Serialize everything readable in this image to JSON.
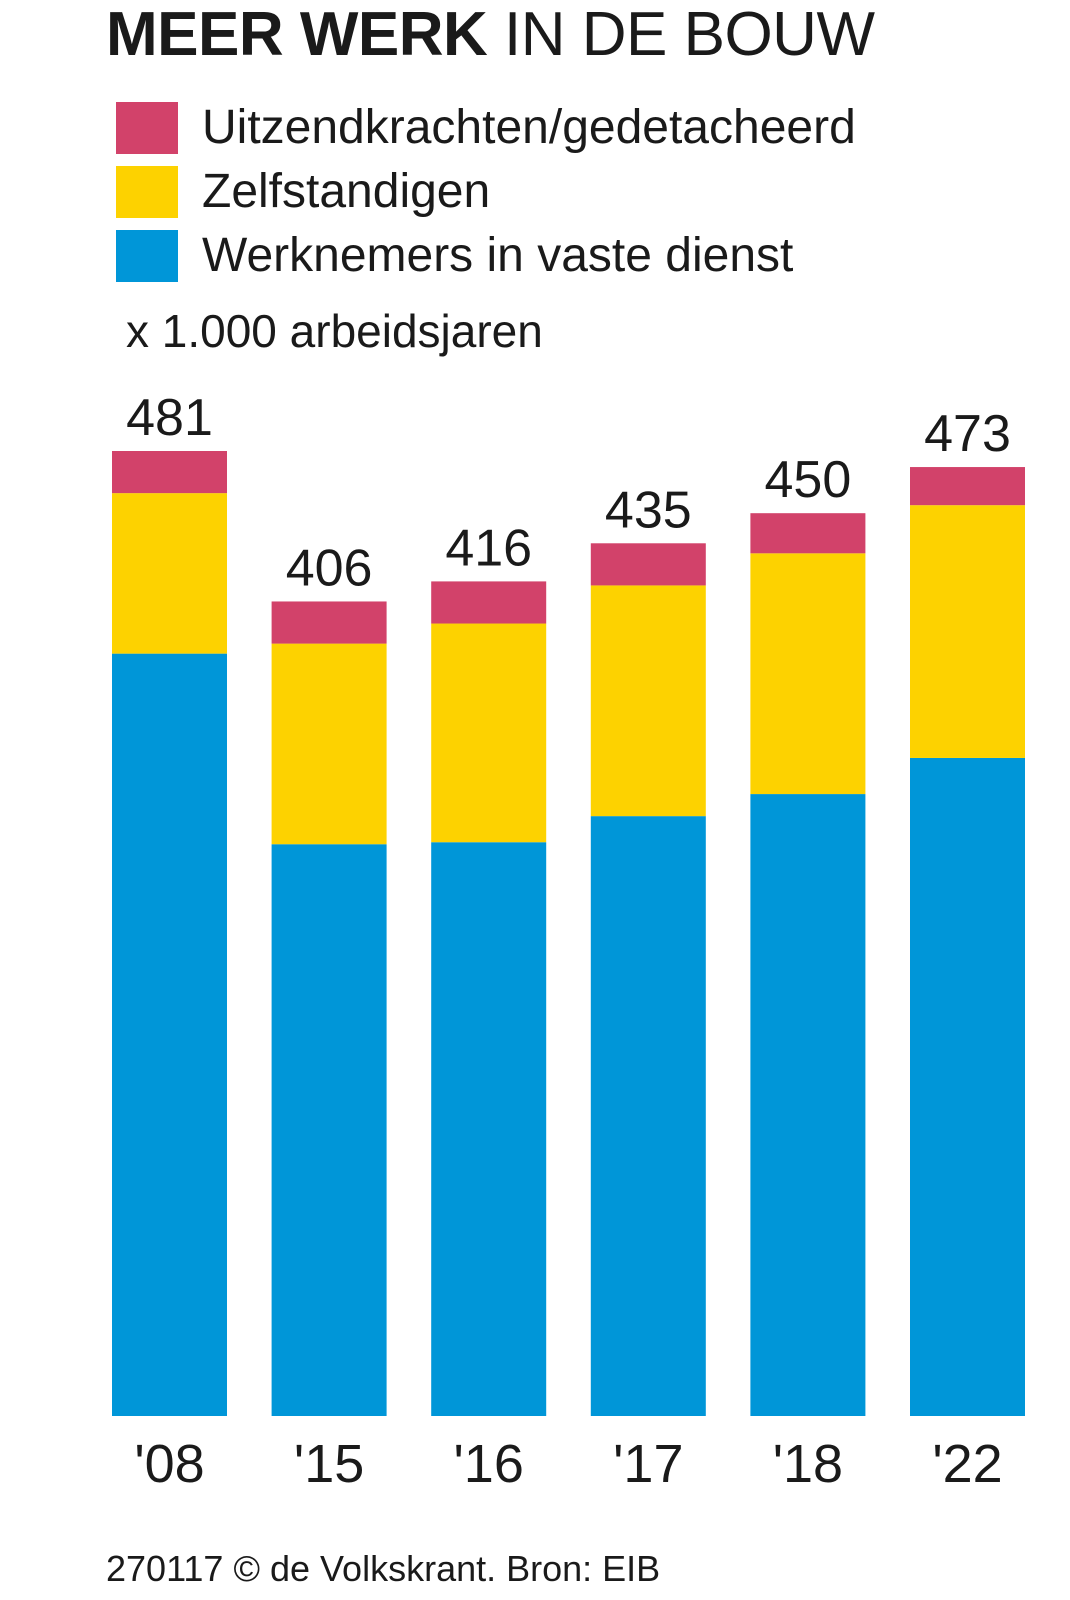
{
  "title": {
    "bold": "MEER WERK",
    "light": "IN DE BOUW"
  },
  "legend": [
    {
      "label": "Uitzendkrachten/gedetacheerd",
      "color": "#d2426a"
    },
    {
      "label": "Zelfstandigen",
      "color": "#fdd200"
    },
    {
      "label": "Werknemers in vaste dienst",
      "color": "#0096d8"
    }
  ],
  "unit_label": "x 1.000 arbeidsjaren",
  "footer": "270117 © de Volkskrant. Bron: EIB",
  "chart_data": {
    "type": "bar",
    "stacked": true,
    "categories": [
      "'08",
      "'15",
      "'16",
      "'17",
      "'18",
      "'22"
    ],
    "totals": [
      481,
      406,
      416,
      435,
      450,
      473
    ],
    "series": [
      {
        "name": "Werknemers in vaste dienst",
        "color": "#0096d8",
        "values": [
          380,
          285,
          286,
          299,
          310,
          328
        ]
      },
      {
        "name": "Zelfstandigen",
        "color": "#fdd200",
        "values": [
          80,
          100,
          109,
          115,
          120,
          126
        ]
      },
      {
        "name": "Uitzendkrachten/gedetacheerd",
        "color": "#d2426a",
        "values": [
          21,
          21,
          21,
          21,
          20,
          19
        ]
      }
    ],
    "ylim": [
      0,
      481
    ],
    "grid": false
  }
}
